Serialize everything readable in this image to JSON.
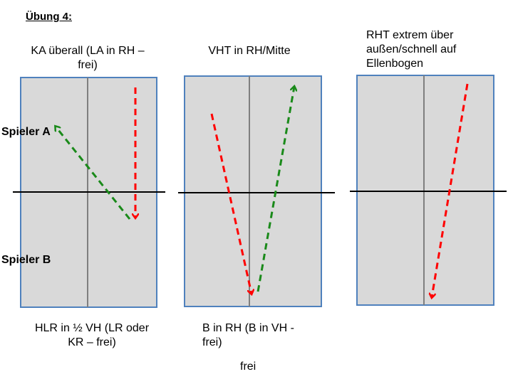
{
  "title": "Übung 4:",
  "player_a": "Spieler A",
  "player_b": "Spieler B",
  "tables": [
    {
      "top_label": "KA überall (LA in RH –\nfrei)",
      "bottom_label": "HLR in ½ VH (LR oder\nKR – frei)"
    },
    {
      "top_label": "VHT in RH/Mitte",
      "bottom_label": "B in RH (B in VH -\nfrei)"
    },
    {
      "top_label": "RHT extrem über\naußen/schnell auf\nEllenbogen",
      "bottom_label": ""
    }
  ],
  "extra_label": "frei",
  "colors": {
    "table": "#d9d9d9",
    "border": "#4f81bd",
    "red": "#ff0000",
    "green": "#1a8a1a"
  }
}
